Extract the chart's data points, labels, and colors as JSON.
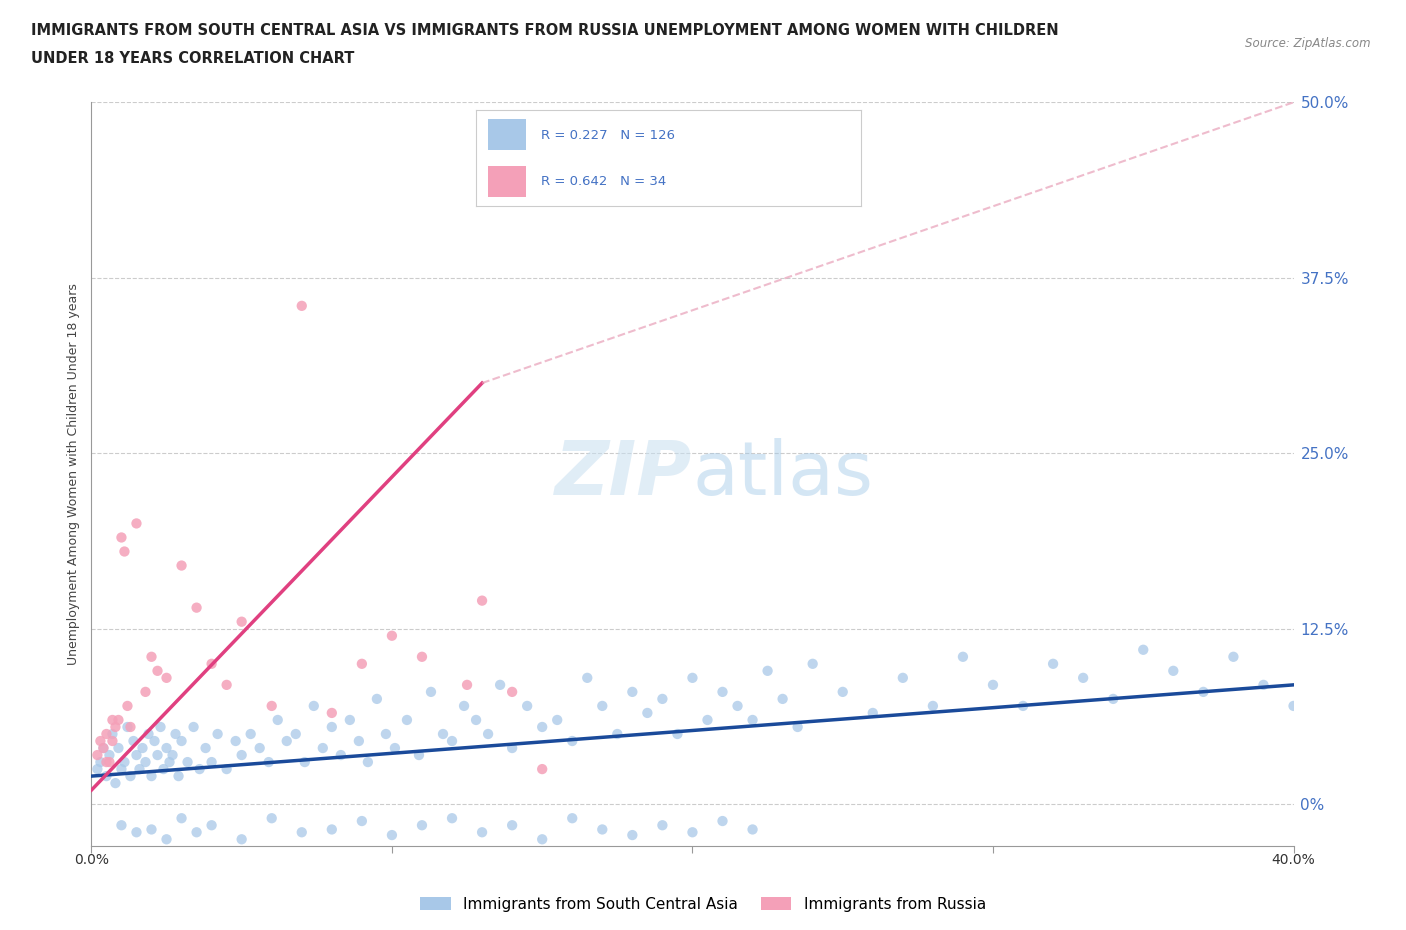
{
  "title_line1": "IMMIGRANTS FROM SOUTH CENTRAL ASIA VS IMMIGRANTS FROM RUSSIA UNEMPLOYMENT AMONG WOMEN WITH CHILDREN",
  "title_line2": "UNDER 18 YEARS CORRELATION CHART",
  "source": "Source: ZipAtlas.com",
  "ylabel": "Unemployment Among Women with Children Under 18 years",
  "ytick_labels": [
    "0%",
    "12.5%",
    "25.0%",
    "37.5%",
    "50.0%"
  ],
  "ytick_values": [
    0,
    12.5,
    25.0,
    37.5,
    50.0
  ],
  "xlim": [
    0,
    40
  ],
  "ylim": [
    -3,
    50
  ],
  "yplot_min": 0,
  "yplot_max": 50,
  "blue_R": 0.227,
  "blue_N": 126,
  "pink_R": 0.642,
  "pink_N": 34,
  "blue_color": "#a8c8e8",
  "pink_color": "#f4a0b8",
  "blue_line_color": "#1a4a9a",
  "pink_line_color": "#e04080",
  "dashed_line_color": "#e8a0b8",
  "watermark_color": "#c8dff0",
  "legend_label_blue": "Immigrants from South Central Asia",
  "legend_label_pink": "Immigrants from Russia",
  "blue_scatter_x": [
    0.2,
    0.3,
    0.4,
    0.5,
    0.6,
    0.7,
    0.8,
    0.9,
    1.0,
    1.1,
    1.2,
    1.3,
    1.4,
    1.5,
    1.6,
    1.7,
    1.8,
    1.9,
    2.0,
    2.1,
    2.2,
    2.3,
    2.4,
    2.5,
    2.6,
    2.7,
    2.8,
    2.9,
    3.0,
    3.2,
    3.4,
    3.6,
    3.8,
    4.0,
    4.2,
    4.5,
    4.8,
    5.0,
    5.3,
    5.6,
    5.9,
    6.2,
    6.5,
    6.8,
    7.1,
    7.4,
    7.7,
    8.0,
    8.3,
    8.6,
    8.9,
    9.2,
    9.5,
    9.8,
    10.1,
    10.5,
    10.9,
    11.3,
    11.7,
    12.0,
    12.4,
    12.8,
    13.2,
    13.6,
    14.0,
    14.5,
    15.0,
    15.5,
    16.0,
    16.5,
    17.0,
    17.5,
    18.0,
    18.5,
    19.0,
    19.5,
    20.0,
    20.5,
    21.0,
    21.5,
    22.0,
    22.5,
    23.0,
    23.5,
    24.0,
    25.0,
    26.0,
    27.0,
    28.0,
    29.0,
    30.0,
    31.0,
    32.0,
    33.0,
    34.0,
    35.0,
    36.0,
    37.0,
    38.0,
    39.0,
    40.0,
    1.0,
    1.5,
    2.0,
    2.5,
    3.0,
    3.5,
    4.0,
    5.0,
    6.0,
    7.0,
    8.0,
    9.0,
    10.0,
    11.0,
    12.0,
    13.0,
    14.0,
    15.0,
    16.0,
    17.0,
    18.0,
    19.0,
    20.0,
    21.0,
    22.0
  ],
  "blue_scatter_y": [
    2.5,
    3.0,
    4.0,
    2.0,
    3.5,
    5.0,
    1.5,
    4.0,
    2.5,
    3.0,
    5.5,
    2.0,
    4.5,
    3.5,
    2.5,
    4.0,
    3.0,
    5.0,
    2.0,
    4.5,
    3.5,
    5.5,
    2.5,
    4.0,
    3.0,
    3.5,
    5.0,
    2.0,
    4.5,
    3.0,
    5.5,
    2.5,
    4.0,
    3.0,
    5.0,
    2.5,
    4.5,
    3.5,
    5.0,
    4.0,
    3.0,
    6.0,
    4.5,
    5.0,
    3.0,
    7.0,
    4.0,
    5.5,
    3.5,
    6.0,
    4.5,
    3.0,
    7.5,
    5.0,
    4.0,
    6.0,
    3.5,
    8.0,
    5.0,
    4.5,
    7.0,
    6.0,
    5.0,
    8.5,
    4.0,
    7.0,
    5.5,
    6.0,
    4.5,
    9.0,
    7.0,
    5.0,
    8.0,
    6.5,
    7.5,
    5.0,
    9.0,
    6.0,
    8.0,
    7.0,
    6.0,
    9.5,
    7.5,
    5.5,
    10.0,
    8.0,
    6.5,
    9.0,
    7.0,
    10.5,
    8.5,
    7.0,
    10.0,
    9.0,
    7.5,
    11.0,
    9.5,
    8.0,
    10.5,
    8.5,
    7.0,
    -1.5,
    -2.0,
    -1.8,
    -2.5,
    -1.0,
    -2.0,
    -1.5,
    -2.5,
    -1.0,
    -2.0,
    -1.8,
    -1.2,
    -2.2,
    -1.5,
    -1.0,
    -2.0,
    -1.5,
    -2.5,
    -1.0,
    -1.8,
    -2.2,
    -1.5,
    -2.0,
    -1.2,
    -1.8
  ],
  "pink_scatter_x": [
    0.2,
    0.4,
    0.5,
    0.6,
    0.7,
    0.8,
    0.9,
    1.0,
    1.1,
    1.2,
    1.5,
    1.8,
    2.0,
    2.5,
    3.0,
    3.5,
    4.0,
    4.5,
    5.0,
    6.0,
    7.0,
    8.0,
    9.0,
    10.0,
    11.0,
    12.5,
    13.0,
    14.0,
    15.0,
    0.3,
    0.5,
    0.7,
    1.3,
    2.2
  ],
  "pink_scatter_y": [
    3.5,
    4.0,
    5.0,
    3.0,
    4.5,
    5.5,
    6.0,
    19.0,
    18.0,
    7.0,
    20.0,
    8.0,
    10.5,
    9.0,
    17.0,
    14.0,
    10.0,
    8.5,
    13.0,
    7.0,
    35.5,
    6.5,
    10.0,
    12.0,
    10.5,
    8.5,
    14.5,
    8.0,
    2.5,
    4.5,
    3.0,
    6.0,
    5.5,
    9.5
  ],
  "blue_trend_x0": 0,
  "blue_trend_x1": 40,
  "blue_trend_y0": 2.0,
  "blue_trend_y1": 8.5,
  "pink_trend_x0": 0,
  "pink_trend_x1": 13,
  "pink_trend_y0": 1.0,
  "pink_trend_y1": 30.0,
  "pink_dash_x0": 13,
  "pink_dash_x1": 40,
  "pink_dash_y0": 30.0,
  "pink_dash_y1": 50.0,
  "grid_color": "#cccccc",
  "background_color": "#ffffff"
}
